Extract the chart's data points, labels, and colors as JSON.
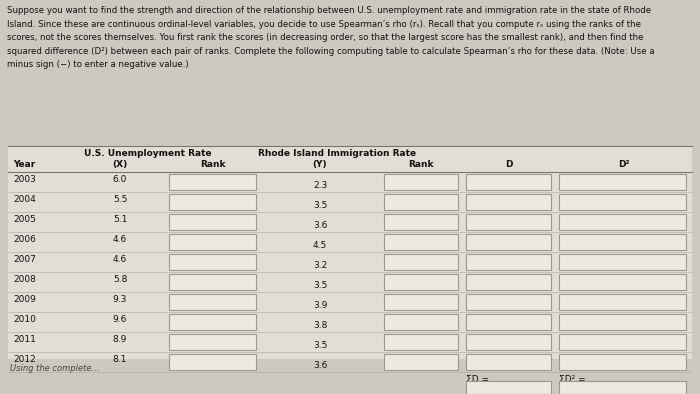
{
  "years": [
    2003,
    2004,
    2005,
    2006,
    2007,
    2008,
    2009,
    2010,
    2011,
    2012
  ],
  "unemployment_x": [
    6.0,
    5.5,
    5.1,
    4.6,
    4.6,
    5.8,
    9.3,
    9.6,
    8.9,
    8.1
  ],
  "immigration_y": [
    2.3,
    3.5,
    3.6,
    4.5,
    3.2,
    3.5,
    3.9,
    3.8,
    3.5,
    3.6
  ],
  "bg_color": "#ccc9c0",
  "table_bg": "#e2ddd5",
  "box_face": "#ede9e1",
  "box_edge": "#999990",
  "text_color": "#111111",
  "line_color": "#777770",
  "light_line": "#aaa89e",
  "para_text_line1": "Suppose you want to find the strength and direction of the relationship between U.S. unemployment rate and immigration rate in the state of Rhode",
  "para_text_line2": "Island. Since these are continuous ordinal-level variables, you decide to use Spearman’s rho (r",
  "para_text_line2b": "). Recall that you compute r",
  "para_text_line2c": " using the ranks of the",
  "para_text_line3": "scores, not the scores themselves. You first rank the scores (in decreasing order, so that the largest score has the smallest rank), and then find the",
  "para_text_line4": "squared difference (D²) between each pair of ranks. Complete the following computing table to calculate Spearman’s rho for these data. (Note: Use a",
  "para_text_line5": "minus sign (−) to enter a negative value.)",
  "header1a": "U.S. Unemployment Rate",
  "header1b": "(X)",
  "header2a": "Rhode Island Immigration Rate",
  "header2b": "(Y)",
  "h_year": "Year",
  "h_rank": "Rank",
  "h_d": "D",
  "h_d2": "D²",
  "sigma_d": "ΣD =",
  "sigma_d2": "ΣD² =",
  "bottom_text": "Using the complete..."
}
